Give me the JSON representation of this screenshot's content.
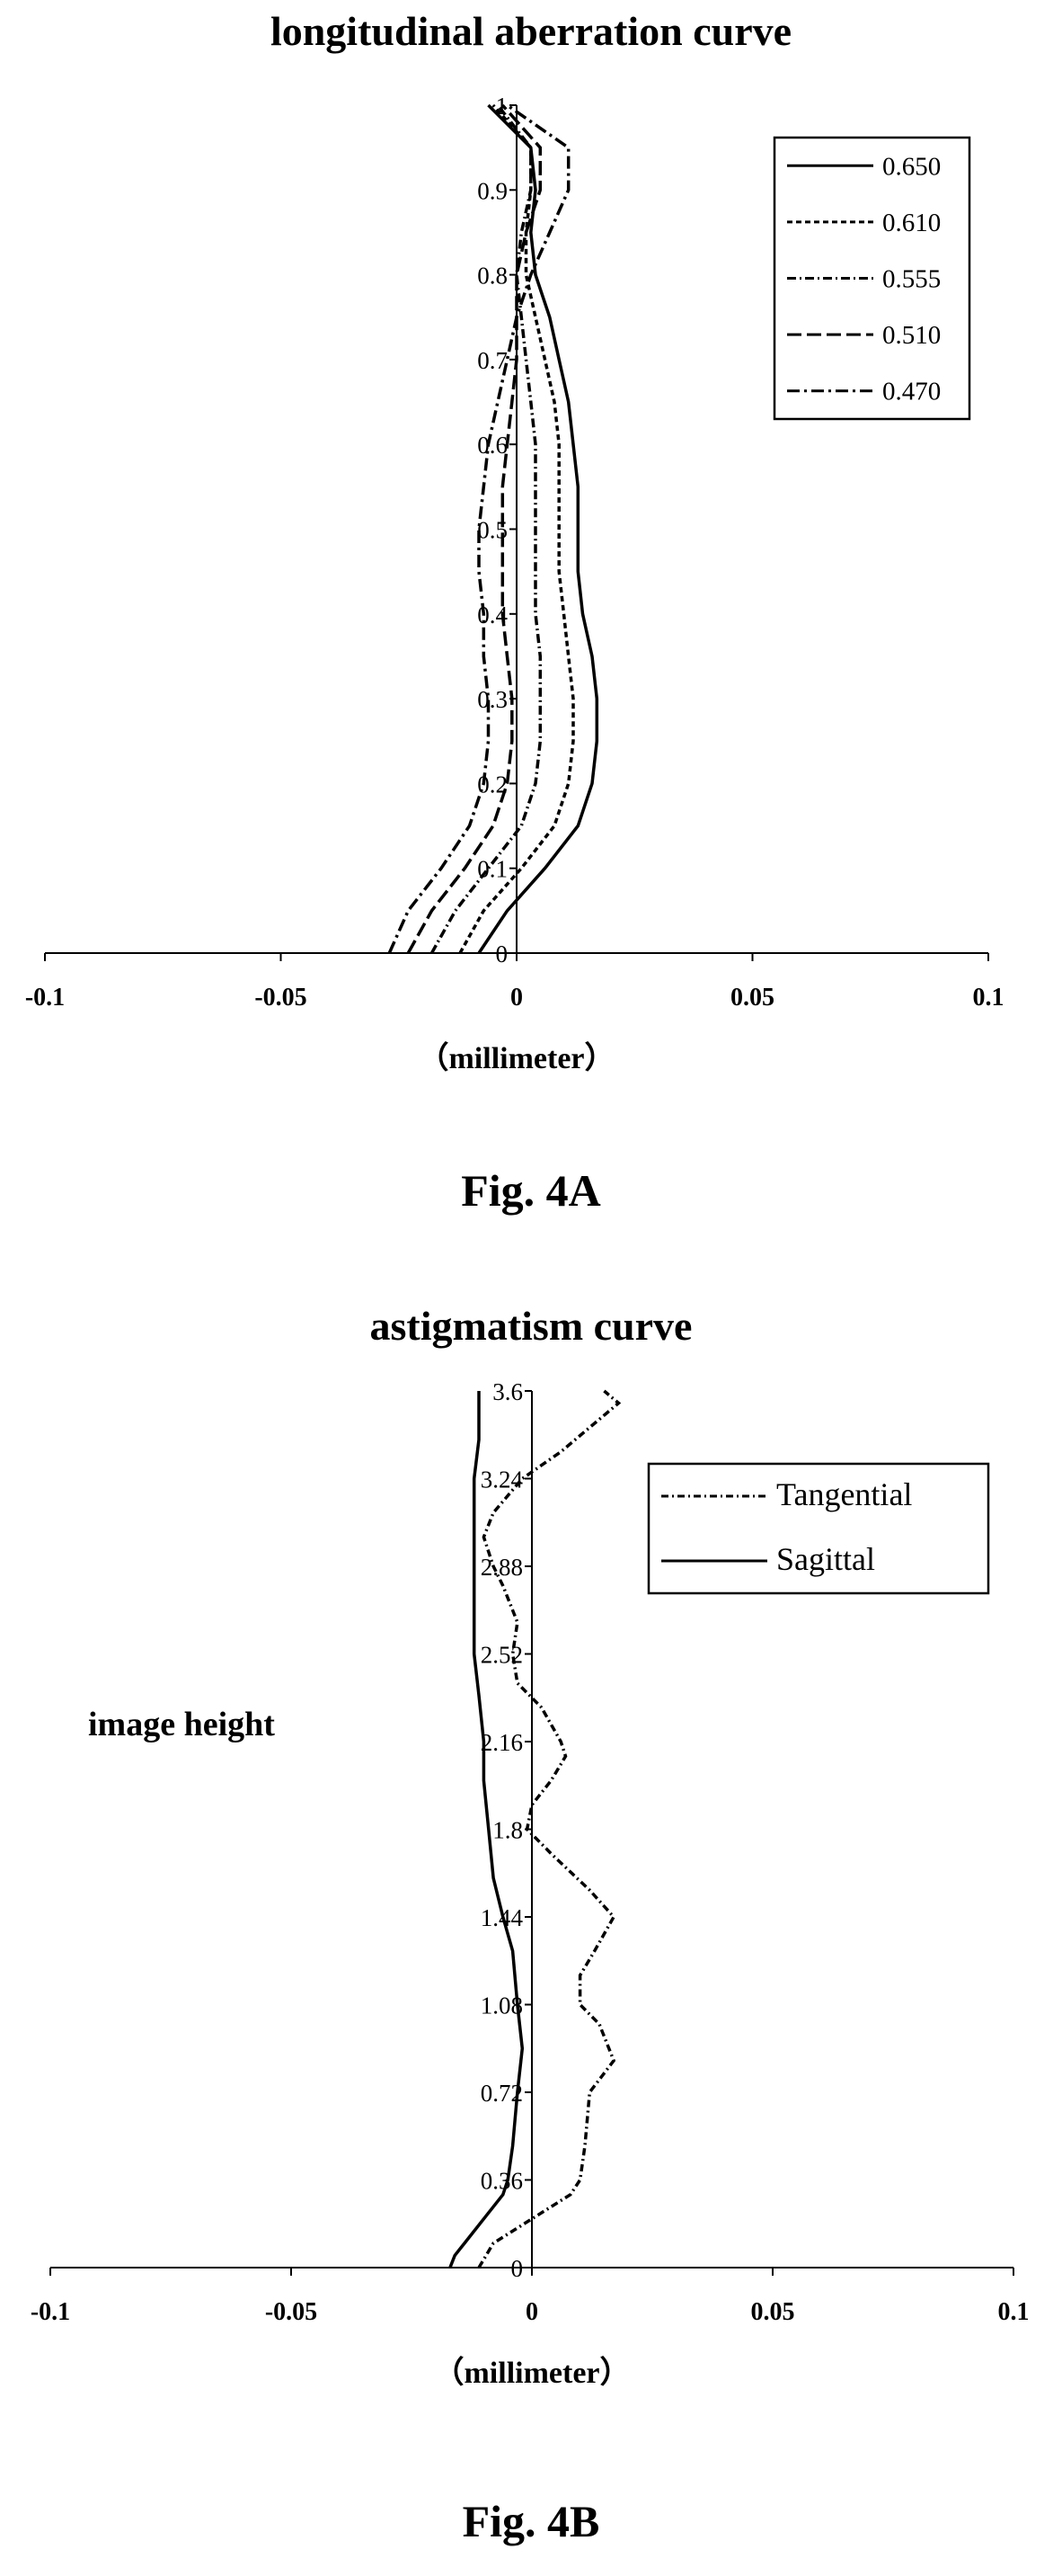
{
  "figures": [
    {
      "caption": "Fig. 4A"
    },
    {
      "caption": "Fig. 4B"
    }
  ],
  "chart_data": [
    {
      "type": "line",
      "title": "longitudinal aberration curve",
      "xlabel": "（millimeter）",
      "ylabel": "",
      "xlim": [
        -0.1,
        0.1
      ],
      "ylim": [
        0,
        1
      ],
      "x_ticks": [
        "-0.1",
        "-0.05",
        "0",
        "0.05",
        "0.1"
      ],
      "y_ticks": [
        "0",
        "0.1",
        "0.2",
        "0.3",
        "0.4",
        "0.5",
        "0.6",
        "0.7",
        "0.8",
        "0.9",
        "1"
      ],
      "legend_position": "top-right",
      "y": [
        0,
        0.05,
        0.1,
        0.15,
        0.2,
        0.25,
        0.3,
        0.35,
        0.4,
        0.45,
        0.5,
        0.55,
        0.6,
        0.65,
        0.7,
        0.75,
        0.8,
        0.85,
        0.9,
        0.95,
        1.0
      ],
      "series": [
        {
          "name": "0.650",
          "color": "#000000",
          "dash": "none",
          "x": [
            -0.008,
            -0.002,
            0.006,
            0.013,
            0.016,
            0.017,
            0.017,
            0.016,
            0.014,
            0.013,
            0.013,
            0.013,
            0.012,
            0.011,
            0.009,
            0.007,
            0.004,
            0.003,
            0.004,
            0.003,
            -0.006
          ]
        },
        {
          "name": "0.610",
          "color": "#000000",
          "dash": "6 4",
          "x": [
            -0.012,
            -0.007,
            0.001,
            0.008,
            0.011,
            0.012,
            0.012,
            0.011,
            0.01,
            0.009,
            0.009,
            0.009,
            0.009,
            0.008,
            0.006,
            0.004,
            0.002,
            0.002,
            0.003,
            0.003,
            -0.005
          ]
        },
        {
          "name": "0.555",
          "color": "#000000",
          "dash": "10 4 2 4",
          "x": [
            -0.018,
            -0.013,
            -0.006,
            0.001,
            0.004,
            0.005,
            0.005,
            0.005,
            0.004,
            0.004,
            0.004,
            0.004,
            0.004,
            0.003,
            0.002,
            0.001,
            0.0,
            0.001,
            0.003,
            0.003,
            -0.004
          ]
        },
        {
          "name": "0.510",
          "color": "#000000",
          "dash": "16 6",
          "x": [
            -0.023,
            -0.018,
            -0.011,
            -0.005,
            -0.002,
            -0.001,
            -0.001,
            -0.002,
            -0.003,
            -0.003,
            -0.003,
            -0.003,
            -0.002,
            -0.001,
            0.0,
            0.0,
            0.0,
            0.002,
            0.005,
            0.005,
            -0.003
          ]
        },
        {
          "name": "0.470",
          "color": "#000000",
          "dash": "14 5 3 5",
          "x": [
            -0.027,
            -0.023,
            -0.016,
            -0.01,
            -0.007,
            -0.006,
            -0.006,
            -0.007,
            -0.007,
            -0.008,
            -0.008,
            -0.007,
            -0.006,
            -0.004,
            -0.002,
            0.0,
            0.003,
            0.007,
            0.011,
            0.011,
            -0.002
          ]
        }
      ]
    },
    {
      "type": "line",
      "title": "astigmatism curve",
      "xlabel": "（millimeter）",
      "ylabel": "image height",
      "xlim": [
        -0.1,
        0.1
      ],
      "ylim": [
        0,
        3.6
      ],
      "x_ticks": [
        "-0.1",
        "-0.05",
        "0",
        "0.05",
        "0.1"
      ],
      "y_ticks": [
        "0",
        "0.36",
        "0.72",
        "1.08",
        "1.44",
        "1.8",
        "2.16",
        "2.52",
        "2.88",
        "3.24",
        "3.6"
      ],
      "legend_position": "top-right",
      "series": [
        {
          "name": "Tangential",
          "color": "#000000",
          "dash": "8 4 2 4",
          "y": [
            0,
            0.1,
            0.2,
            0.3,
            0.36,
            0.5,
            0.72,
            0.85,
            1.0,
            1.08,
            1.2,
            1.3,
            1.44,
            1.55,
            1.7,
            1.8,
            1.9,
            2.0,
            2.1,
            2.16,
            2.3,
            2.4,
            2.52,
            2.65,
            2.8,
            2.88,
            3.0,
            3.1,
            3.24,
            3.35,
            3.45,
            3.55,
            3.6
          ],
          "x": [
            -0.011,
            -0.008,
            0.0,
            0.008,
            0.01,
            0.011,
            0.012,
            0.017,
            0.014,
            0.01,
            0.01,
            0.013,
            0.017,
            0.012,
            0.004,
            -0.001,
            0.0,
            0.004,
            0.007,
            0.006,
            0.002,
            -0.003,
            -0.004,
            -0.003,
            -0.006,
            -0.008,
            -0.01,
            -0.008,
            -0.002,
            0.006,
            0.012,
            0.018,
            0.015
          ]
        },
        {
          "name": "Sagittal",
          "color": "#000000",
          "dash": "none",
          "y": [
            0,
            0.05,
            0.1,
            0.2,
            0.3,
            0.36,
            0.5,
            0.72,
            0.9,
            1.08,
            1.3,
            1.44,
            1.6,
            1.8,
            2.0,
            2.16,
            2.35,
            2.52,
            2.7,
            2.88,
            3.05,
            3.24,
            3.4,
            3.5,
            3.6
          ],
          "x": [
            -0.017,
            -0.016,
            -0.014,
            -0.01,
            -0.006,
            -0.005,
            -0.004,
            -0.003,
            -0.002,
            -0.003,
            -0.004,
            -0.006,
            -0.008,
            -0.009,
            -0.01,
            -0.01,
            -0.011,
            -0.012,
            -0.012,
            -0.012,
            -0.012,
            -0.012,
            -0.011,
            -0.011,
            -0.011
          ]
        }
      ]
    }
  ]
}
